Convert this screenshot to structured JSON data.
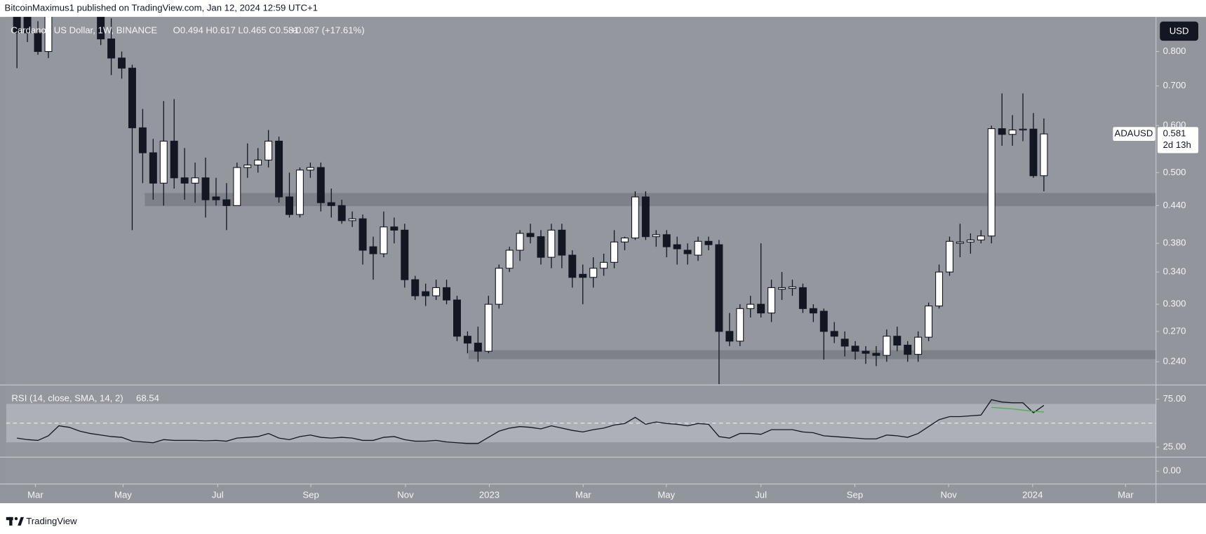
{
  "header": {
    "publisher": "BitcoinMaximus1 published on TradingView.com, Jan 12, 2024 12:59 UTC+1"
  },
  "footer": {
    "brand": "TradingView"
  },
  "chart_data": [
    {
      "type": "candlestick",
      "title": "Cardano / US Dollar, 1W, BINANCE",
      "ohlc_text": "O0.494 H0.617 L0.465 C0.581",
      "change_text": "+0.087 (+17.61%)",
      "currency": "USD",
      "symbol": "ADAUSD",
      "countdown": "2d 13h",
      "log_scale": true,
      "up_color": "#ffffff",
      "down_color": "#131722",
      "zone_color": "#7f8189",
      "open": [
        0.95,
        0.92,
        0.86,
        0.8,
        0.95,
        1.1,
        1.15,
        1.05,
        0.96,
        0.84,
        0.78,
        0.75,
        0.595,
        0.54,
        0.48,
        0.565,
        0.49,
        0.48,
        0.49,
        0.455,
        0.45,
        0.44,
        0.51,
        0.515,
        0.525,
        0.565,
        0.455,
        0.425,
        0.505,
        0.51,
        0.445,
        0.44,
        0.415,
        0.418,
        0.375,
        0.365,
        0.405,
        0.4,
        0.33,
        0.315,
        0.31,
        0.32,
        0.305,
        0.265,
        0.258,
        0.25,
        0.3,
        0.345,
        0.37,
        0.395,
        0.39,
        0.36,
        0.4,
        0.363,
        0.337,
        0.333,
        0.345,
        0.353,
        0.382,
        0.388,
        0.455,
        0.39,
        0.393,
        0.378,
        0.37,
        0.363,
        0.383,
        0.378,
        0.27,
        0.26,
        0.295,
        0.3,
        0.29,
        0.318,
        0.319,
        0.32,
        0.295,
        0.292,
        0.27,
        0.262,
        0.255,
        0.25,
        0.248,
        0.246,
        0.265,
        0.256,
        0.247,
        0.264,
        0.298,
        0.34,
        0.38,
        0.382,
        0.385,
        0.391,
        0.593,
        0.58,
        0.59,
        0.592,
        0.494
      ],
      "high": [
        1.0,
        0.95,
        0.9,
        1.1,
        1.2,
        1.24,
        1.2,
        1.1,
        1.0,
        0.91,
        0.8,
        0.76,
        0.64,
        0.57,
        0.66,
        0.665,
        0.55,
        0.52,
        0.53,
        0.49,
        0.48,
        0.52,
        0.56,
        0.55,
        0.59,
        0.575,
        0.5,
        0.51,
        0.52,
        0.52,
        0.47,
        0.45,
        0.43,
        0.425,
        0.39,
        0.43,
        0.42,
        0.41,
        0.335,
        0.325,
        0.33,
        0.33,
        0.31,
        0.27,
        0.275,
        0.31,
        0.35,
        0.375,
        0.4,
        0.41,
        0.4,
        0.41,
        0.41,
        0.37,
        0.35,
        0.36,
        0.365,
        0.4,
        0.39,
        0.465,
        0.465,
        0.4,
        0.4,
        0.39,
        0.38,
        0.39,
        0.39,
        0.385,
        0.29,
        0.3,
        0.31,
        0.38,
        0.33,
        0.34,
        0.33,
        0.325,
        0.3,
        0.295,
        0.28,
        0.27,
        0.26,
        0.255,
        0.255,
        0.272,
        0.275,
        0.26,
        0.27,
        0.302,
        0.35,
        0.39,
        0.41,
        0.395,
        0.4,
        0.6,
        0.68,
        0.625,
        0.68,
        0.63,
        0.617
      ],
      "low": [
        0.75,
        0.83,
        0.79,
        0.78,
        0.93,
        1.05,
        0.95,
        0.93,
        0.82,
        0.73,
        0.72,
        0.4,
        0.48,
        0.45,
        0.44,
        0.47,
        0.45,
        0.445,
        0.42,
        0.44,
        0.4,
        0.44,
        0.49,
        0.5,
        0.51,
        0.445,
        0.42,
        0.42,
        0.49,
        0.43,
        0.42,
        0.41,
        0.405,
        0.35,
        0.33,
        0.36,
        0.38,
        0.32,
        0.305,
        0.298,
        0.305,
        0.3,
        0.26,
        0.248,
        0.24,
        0.248,
        0.295,
        0.34,
        0.355,
        0.38,
        0.35,
        0.345,
        0.345,
        0.32,
        0.3,
        0.32,
        0.335,
        0.345,
        0.37,
        0.385,
        0.385,
        0.375,
        0.36,
        0.35,
        0.35,
        0.355,
        0.37,
        0.22,
        0.255,
        0.255,
        0.285,
        0.285,
        0.28,
        0.305,
        0.31,
        0.29,
        0.28,
        0.242,
        0.258,
        0.245,
        0.242,
        0.238,
        0.236,
        0.24,
        0.25,
        0.24,
        0.24,
        0.26,
        0.295,
        0.335,
        0.36,
        0.365,
        0.38,
        0.38,
        0.555,
        0.555,
        0.565,
        0.49,
        0.465
      ],
      "close": [
        0.86,
        0.86,
        0.8,
        0.95,
        1.1,
        1.15,
        1.05,
        0.96,
        0.84,
        0.78,
        0.75,
        0.595,
        0.54,
        0.48,
        0.565,
        0.49,
        0.48,
        0.49,
        0.45,
        0.45,
        0.44,
        0.51,
        0.515,
        0.525,
        0.565,
        0.455,
        0.425,
        0.505,
        0.51,
        0.445,
        0.44,
        0.415,
        0.418,
        0.37,
        0.365,
        0.405,
        0.4,
        0.33,
        0.31,
        0.31,
        0.32,
        0.305,
        0.265,
        0.258,
        0.25,
        0.3,
        0.345,
        0.37,
        0.395,
        0.39,
        0.36,
        0.4,
        0.363,
        0.333,
        0.333,
        0.345,
        0.353,
        0.382,
        0.388,
        0.455,
        0.39,
        0.393,
        0.375,
        0.372,
        0.365,
        0.383,
        0.378,
        0.27,
        0.26,
        0.295,
        0.3,
        0.29,
        0.32,
        0.32,
        0.321,
        0.295,
        0.29,
        0.27,
        0.265,
        0.255,
        0.25,
        0.248,
        0.246,
        0.265,
        0.256,
        0.247,
        0.264,
        0.298,
        0.34,
        0.383,
        0.382,
        0.385,
        0.391,
        0.593,
        0.58,
        0.59,
        0.592,
        0.494,
        0.581
      ],
      "ylim": [
        0.22,
        0.915
      ],
      "yticks": [
        {
          "value": 0.24,
          "label": "0.240"
        },
        {
          "value": 0.27,
          "label": "0.270"
        },
        {
          "value": 0.3,
          "label": "0.300"
        },
        {
          "value": 0.34,
          "label": "0.340"
        },
        {
          "value": 0.38,
          "label": "0.380"
        },
        {
          "value": 0.44,
          "label": "0.440"
        },
        {
          "value": 0.5,
          "label": "0.500"
        },
        {
          "value": 0.6,
          "label": "0.600"
        },
        {
          "value": 0.7,
          "label": "0.700"
        },
        {
          "value": 0.8,
          "label": "0.800"
        }
      ],
      "xlim": [
        -1.03,
        108.7
      ],
      "xticks": [
        {
          "value": 1.76,
          "label": "Mar"
        },
        {
          "value": 10.13,
          "label": "May"
        },
        {
          "value": 19.16,
          "label": "Jul"
        },
        {
          "value": 28.05,
          "label": "Sep"
        },
        {
          "value": 37.08,
          "label": "Nov"
        },
        {
          "value": 45.08,
          "label": "2023"
        },
        {
          "value": 54.04,
          "label": "Mar"
        },
        {
          "value": 61.97,
          "label": "May"
        },
        {
          "value": 71.0,
          "label": "Jul"
        },
        {
          "value": 79.96,
          "label": "Sep"
        },
        {
          "value": 88.91,
          "label": "Nov"
        },
        {
          "value": 96.92,
          "label": "2024"
        },
        {
          "value": 105.8,
          "label": "Mar"
        }
      ],
      "zones": [
        {
          "low": 0.439,
          "high": 0.462,
          "start": 12.2
        },
        {
          "low": 0.2425,
          "high": 0.251,
          "start": 43.1
        }
      ]
    },
    {
      "type": "line",
      "title": "RSI (14, close, SMA, 14, 2)",
      "series": [
        {
          "color": "#131722",
          "values": [
            34.4,
            32.8,
            32.0,
            36.8,
            47.2,
            45.6,
            41.6,
            39.2,
            37.6,
            36.0,
            35.2,
            31.2,
            30.4,
            29.6,
            32.8,
            32.0,
            32.0,
            32.0,
            31.6,
            32.0,
            31.2,
            34.4,
            35.2,
            36.0,
            39.2,
            34.4,
            32.8,
            36.0,
            37.6,
            35.2,
            34.4,
            35.2,
            34.4,
            32.0,
            32.0,
            35.2,
            36.0,
            32.8,
            31.2,
            31.2,
            32.0,
            30.4,
            29.6,
            28.8,
            28.8,
            35.2,
            41.6,
            44.8,
            46.4,
            45.6,
            44.0,
            47.2,
            44.8,
            42.4,
            40.8,
            43.2,
            44.8,
            48.0,
            49.6,
            56.0,
            48.8,
            51.2,
            49.6,
            48.8,
            47.2,
            49.6,
            48.8,
            36.0,
            34.4,
            39.2,
            39.2,
            38.4,
            43.2,
            43.2,
            43.2,
            40.8,
            40.0,
            36.8,
            36.0,
            35.2,
            34.4,
            33.6,
            33.6,
            37.6,
            36.8,
            35.2,
            39.2,
            46.4,
            53.6,
            56.8,
            56.8,
            57.6,
            58.4,
            74.4,
            72.0,
            71.2,
            71.2,
            60.8,
            68.54
          ]
        },
        {
          "color": "#4caf50",
          "values": [
            null,
            null,
            null,
            null,
            null,
            null,
            null,
            null,
            null,
            null,
            null,
            null,
            null,
            null,
            null,
            null,
            null,
            null,
            null,
            null,
            null,
            null,
            null,
            null,
            null,
            null,
            null,
            null,
            null,
            null,
            null,
            null,
            null,
            null,
            null,
            null,
            null,
            null,
            null,
            null,
            null,
            null,
            null,
            null,
            null,
            null,
            null,
            null,
            null,
            null,
            null,
            null,
            null,
            null,
            null,
            null,
            null,
            null,
            null,
            null,
            null,
            null,
            null,
            null,
            null,
            null,
            null,
            null,
            null,
            null,
            null,
            null,
            null,
            null,
            null,
            null,
            null,
            null,
            null,
            null,
            null,
            null,
            null,
            null,
            null,
            null,
            null,
            null,
            null,
            null,
            null,
            null,
            null,
            66.4,
            65.6,
            64.8,
            63.6,
            62.4,
            61.6
          ]
        }
      ],
      "ylim": [
        -13.5,
        89
      ],
      "yticks": [
        {
          "value": 0,
          "label": "0.00"
        },
        {
          "value": 25,
          "label": "25.00"
        },
        {
          "value": 75,
          "label": "75.00"
        }
      ],
      "band": [
        30,
        70
      ],
      "midline": 50
    }
  ]
}
